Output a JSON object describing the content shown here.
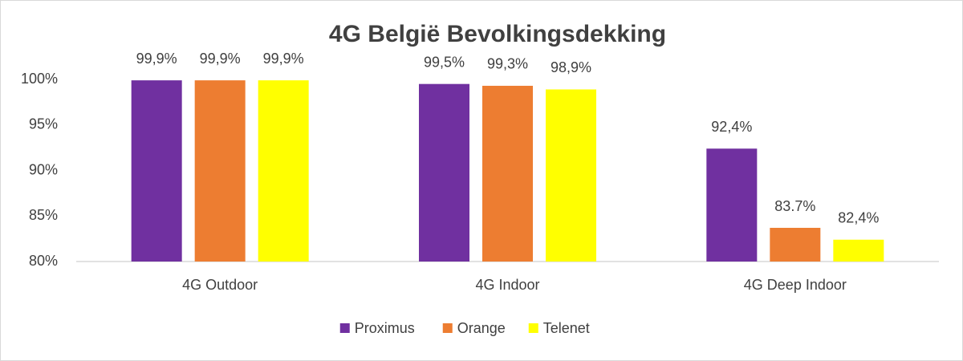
{
  "chart_data": {
    "type": "bar",
    "title": "4G België Bevolkingsdekking",
    "categories": [
      "4G Outdoor",
      "4G Indoor",
      "4G Deep Indoor"
    ],
    "series": [
      {
        "name": "Proximus",
        "color": "#7030a0",
        "values": [
          99.9,
          99.5,
          92.4
        ],
        "value_labels": [
          "99,9%",
          "99,5%",
          "92,4%"
        ]
      },
      {
        "name": "Orange",
        "color": "#ed7d31",
        "values": [
          99.9,
          99.3,
          83.7
        ],
        "value_labels": [
          "99,9%",
          "99,3%",
          "83.7%"
        ]
      },
      {
        "name": "Telenet",
        "color": "#ffff00",
        "values": [
          99.9,
          98.9,
          82.4
        ],
        "value_labels": [
          "99,9%",
          "98,9%",
          "82,4%"
        ]
      }
    ],
    "ylim": [
      80,
      100
    ],
    "yticks": [
      {
        "value": 80,
        "label": "80%"
      },
      {
        "value": 85,
        "label": "85%"
      },
      {
        "value": 90,
        "label": "90%"
      },
      {
        "value": 95,
        "label": "95%"
      },
      {
        "value": 100,
        "label": "100%"
      }
    ],
    "grid": false,
    "legend": "bottom"
  }
}
